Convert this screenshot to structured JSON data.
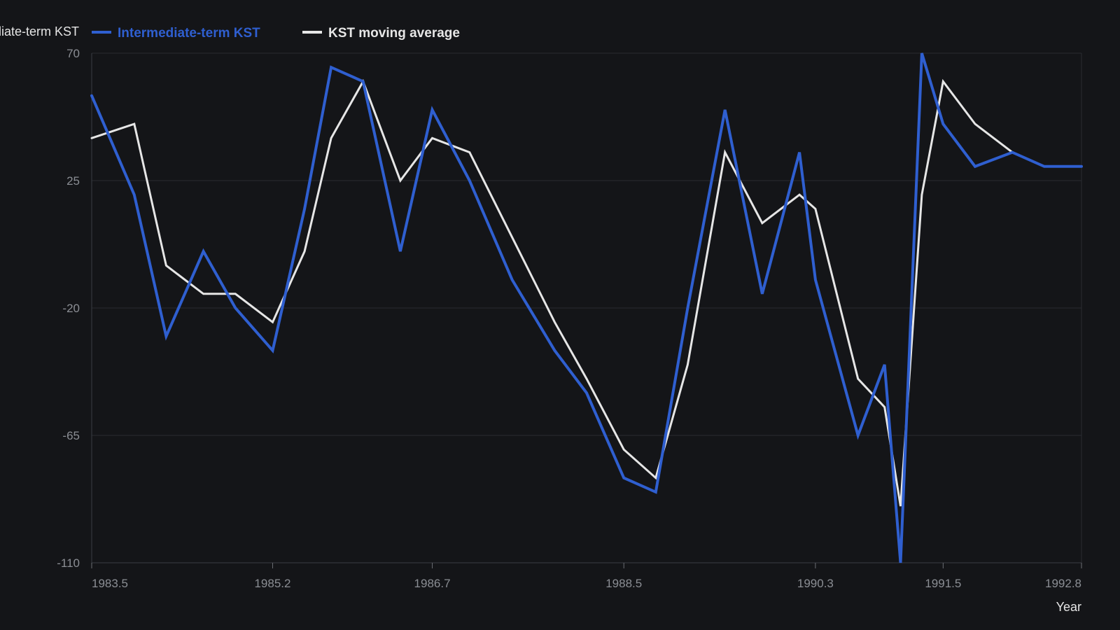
{
  "chart_data": {
    "type": "line",
    "title": "",
    "xlabel": "Year",
    "ylabel": "Intermediate-term KST",
    "ylim": [
      -110,
      70
    ],
    "xlim": [
      1983.5,
      1992.8
    ],
    "y_ticks": [
      "70",
      "25",
      "-20",
      "-65",
      "-110"
    ],
    "y_tick_values": [
      70,
      25,
      -20,
      -65,
      -110
    ],
    "x_ticks": [
      "1983.5",
      "1985.2",
      "1986.7",
      "1988.5",
      "1990.3",
      "1991.5",
      "1992.8"
    ],
    "x_tick_values": [
      1983.5,
      1985.2,
      1986.7,
      1988.5,
      1990.3,
      1991.5,
      1992.8
    ],
    "grid": true,
    "legend_position": "top-left",
    "background_color": "#141518",
    "series": [
      {
        "name": "Intermediate-term KST",
        "color": "#2f5fd0",
        "x": [
          1983.5,
          1983.9,
          1984.2,
          1984.55,
          1984.85,
          1985.2,
          1985.5,
          1985.75,
          1986.05,
          1986.4,
          1986.7,
          1987.05,
          1987.45,
          1987.85,
          1988.15,
          1988.5,
          1988.8,
          1989.1,
          1989.45,
          1989.8,
          1990.15,
          1990.3,
          1990.7,
          1990.95,
          1991.1,
          1991.3,
          1991.5,
          1991.8,
          1992.15,
          1992.45,
          1992.8
        ],
        "y": [
          55,
          20,
          -30,
          0,
          -20,
          -35,
          15,
          65,
          60,
          0,
          50,
          25,
          -10,
          -35,
          -50,
          -80,
          -85,
          -20,
          50,
          -15,
          35,
          -10,
          -65,
          -40,
          -110,
          70,
          45,
          30,
          35,
          30,
          30
        ]
      },
      {
        "name": "KST moving average",
        "color": "#e6e6e6",
        "x": [
          1983.5,
          1983.9,
          1984.2,
          1984.55,
          1984.85,
          1985.2,
          1985.5,
          1985.75,
          1986.05,
          1986.4,
          1986.7,
          1987.05,
          1987.45,
          1987.85,
          1988.15,
          1988.5,
          1988.8,
          1989.1,
          1989.45,
          1989.8,
          1990.15,
          1990.3,
          1990.7,
          1990.95,
          1991.1,
          1991.3,
          1991.5,
          1991.8,
          1992.15,
          1992.45,
          1992.8
        ],
        "y": [
          40,
          45,
          -5,
          -15,
          -15,
          -25,
          0,
          40,
          60,
          25,
          40,
          35,
          5,
          -25,
          -45,
          -70,
          -80,
          -40,
          35,
          10,
          20,
          15,
          -45,
          -55,
          -90,
          20,
          60,
          45,
          35,
          30,
          30
        ]
      }
    ]
  }
}
